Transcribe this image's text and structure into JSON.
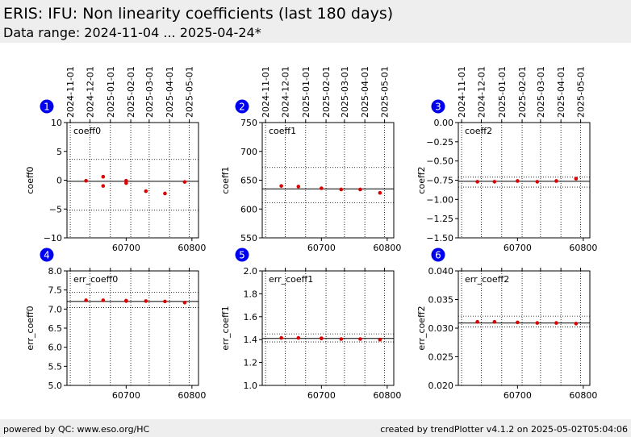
{
  "header": {
    "title": "ERIS: IFU: Non linearity coefficients (last 180 days)",
    "subtitle": "Data range: 2024-11-04 ... 2025-04-24*"
  },
  "footer": {
    "left": "powered by QC: www.eso.org/HC",
    "right": "created by trendPlotter v4.1.2 on 2025-05-02T05:04:06"
  },
  "colors": {
    "points": "#dd0000",
    "badge": "#0000ee",
    "header_bg": "#eeeeee"
  },
  "chart_data": [
    {
      "type": "scatter",
      "panel": "1",
      "label": "coeff0",
      "ylabel": "coeff0",
      "xlim": [
        60610,
        60810
      ],
      "ylim": [
        -10,
        10
      ],
      "yticks": [
        -10,
        -5,
        0,
        5,
        10
      ],
      "ytick_labels": [
        "−10",
        "−5",
        "0",
        "5",
        "10"
      ],
      "xticks": [
        60700,
        60800
      ],
      "xtick_labels": [
        "60700",
        "60800"
      ],
      "date_ticks": [
        60615,
        60645,
        60676,
        60707,
        60735,
        60766,
        60796
      ],
      "date_labels": [
        "2024-11-01",
        "2024-12-01",
        "2025-01-01",
        "2025-02-01",
        "2025-03-01",
        "2025-04-01",
        "2025-05-01"
      ],
      "ref_line": -0.2,
      "band": [
        -5.2,
        3.6
      ],
      "x": [
        60639,
        60665,
        60665,
        60700,
        60700,
        60730,
        60759,
        60789
      ],
      "y": [
        -0.1,
        0.6,
        -1.0,
        -0.1,
        -0.5,
        -1.9,
        -2.3,
        -0.3
      ]
    },
    {
      "type": "scatter",
      "panel": "2",
      "label": "coeff1",
      "ylabel": "coeff1",
      "xlim": [
        60610,
        60810
      ],
      "ylim": [
        550,
        750
      ],
      "yticks": [
        550,
        600,
        650,
        700,
        750
      ],
      "ytick_labels": [
        "550",
        "600",
        "650",
        "700",
        "750"
      ],
      "xticks": [
        60700,
        60800
      ],
      "xtick_labels": [
        "60700",
        "60800"
      ],
      "date_ticks": [
        60615,
        60645,
        60676,
        60707,
        60735,
        60766,
        60796
      ],
      "date_labels": [
        "2024-11-01",
        "2024-12-01",
        "2025-01-01",
        "2025-02-01",
        "2025-03-01",
        "2025-04-01",
        "2025-05-01"
      ],
      "ref_line": 635,
      "band": [
        611,
        672
      ],
      "x": [
        60639,
        60665,
        60700,
        60730,
        60759,
        60789
      ],
      "y": [
        640,
        639,
        636,
        634,
        634,
        628
      ]
    },
    {
      "type": "scatter",
      "panel": "3",
      "label": "coeff2",
      "ylabel": "coeff2",
      "xlim": [
        60610,
        60810
      ],
      "ylim": [
        -1.5,
        0
      ],
      "yticks": [
        -1.5,
        -1.25,
        -1.0,
        -0.75,
        -0.5,
        -0.25,
        0
      ],
      "ytick_labels": [
        "−1.50",
        "−1.25",
        "−1.00",
        "−0.75",
        "−0.50",
        "−0.25",
        "0.00"
      ],
      "xticks": [
        60700,
        60800
      ],
      "xtick_labels": [
        "60700",
        "60800"
      ],
      "date_ticks": [
        60615,
        60645,
        60676,
        60707,
        60735,
        60766,
        60796
      ],
      "date_labels": [
        "2024-11-01",
        "2024-12-01",
        "2025-01-01",
        "2025-02-01",
        "2025-03-01",
        "2025-04-01",
        "2025-05-01"
      ],
      "ref_line": -0.765,
      "band": [
        -0.84,
        -0.71
      ],
      "x": [
        60639,
        60665,
        60700,
        60730,
        60759,
        60789
      ],
      "y": [
        -0.77,
        -0.77,
        -0.76,
        -0.77,
        -0.76,
        -0.73
      ]
    },
    {
      "type": "scatter",
      "panel": "4",
      "label": "err_coeff0",
      "ylabel": "err_coeff0",
      "xlim": [
        60610,
        60810
      ],
      "ylim": [
        5.0,
        8.0
      ],
      "yticks": [
        5.0,
        5.5,
        6.0,
        6.5,
        7.0,
        7.5,
        8.0
      ],
      "ytick_labels": [
        "5.0",
        "5.5",
        "6.0",
        "6.5",
        "7.0",
        "7.5",
        "8.0"
      ],
      "xticks": [
        60700,
        60800
      ],
      "xtick_labels": [
        "60700",
        "60800"
      ],
      "date_ticks": [
        60615,
        60645,
        60676,
        60707,
        60735,
        60766,
        60796
      ],
      "ref_line": 7.2,
      "band": [
        7.04,
        7.44
      ],
      "x": [
        60639,
        60665,
        60700,
        60700,
        60730,
        60759,
        60789
      ],
      "y": [
        7.23,
        7.23,
        7.22,
        7.21,
        7.21,
        7.2,
        7.17
      ]
    },
    {
      "type": "scatter",
      "panel": "5",
      "label": "err_coeff1",
      "ylabel": "err_coeff1",
      "xlim": [
        60610,
        60810
      ],
      "ylim": [
        1.0,
        2.0
      ],
      "yticks": [
        1.0,
        1.2,
        1.4,
        1.6,
        1.8,
        2.0
      ],
      "ytick_labels": [
        "1.0",
        "1.2",
        "1.4",
        "1.6",
        "1.8",
        "2.0"
      ],
      "xticks": [
        60700,
        60800
      ],
      "xtick_labels": [
        "60700",
        "60800"
      ],
      "date_ticks": [
        60615,
        60645,
        60676,
        60707,
        60735,
        60766,
        60796
      ],
      "ref_line": 1.41,
      "band": [
        1.38,
        1.45
      ],
      "x": [
        60639,
        60665,
        60700,
        60700,
        60730,
        60759,
        60789
      ],
      "y": [
        1.415,
        1.415,
        1.412,
        1.41,
        1.405,
        1.405,
        1.4
      ]
    },
    {
      "type": "scatter",
      "panel": "6",
      "label": "err_coeff2",
      "ylabel": "err_coeff2",
      "xlim": [
        60610,
        60810
      ],
      "ylim": [
        0.02,
        0.04
      ],
      "yticks": [
        0.02,
        0.025,
        0.03,
        0.035,
        0.04
      ],
      "ytick_labels": [
        "0.020",
        "0.025",
        "0.030",
        "0.035",
        "0.040"
      ],
      "xticks": [
        60700,
        60800
      ],
      "xtick_labels": [
        "60700",
        "60800"
      ],
      "date_ticks": [
        60615,
        60645,
        60676,
        60707,
        60735,
        60766,
        60796
      ],
      "ref_line": 0.0309,
      "band": [
        0.0302,
        0.0321
      ],
      "x": [
        60639,
        60665,
        60700,
        60730,
        60759,
        60789
      ],
      "y": [
        0.0311,
        0.0311,
        0.031,
        0.0309,
        0.0309,
        0.0308
      ]
    }
  ]
}
